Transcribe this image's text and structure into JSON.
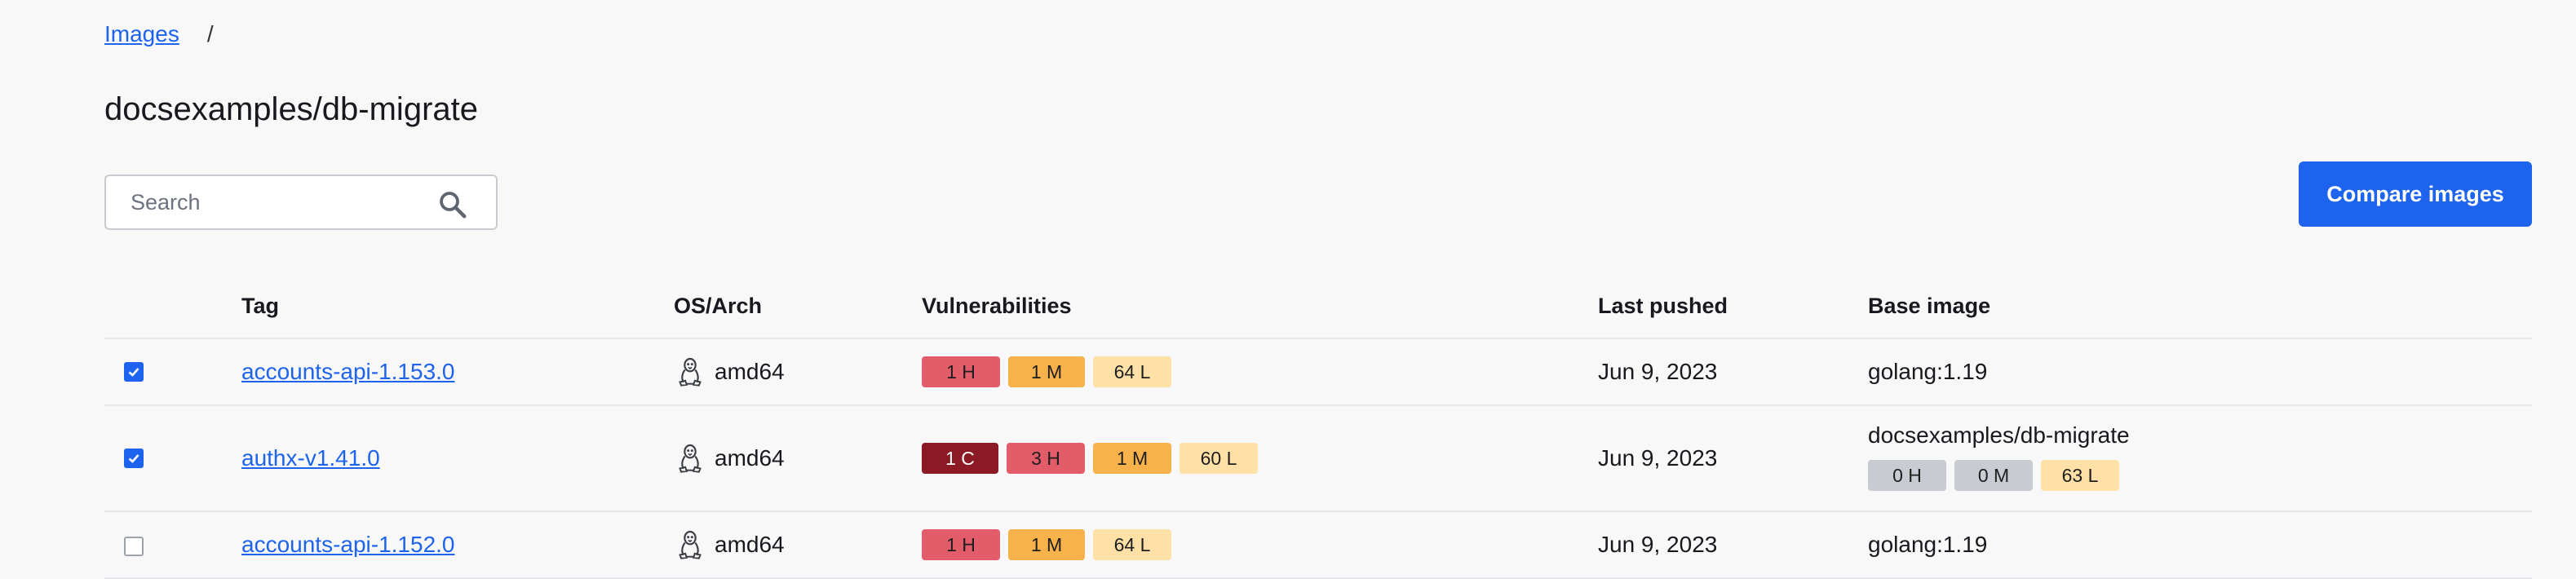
{
  "breadcrumb": {
    "images_link": "Images",
    "separator": "/"
  },
  "page_title": "docsexamples/db-migrate",
  "search": {
    "placeholder": "Search",
    "icon": "search-icon"
  },
  "compare_button": "Compare images",
  "table": {
    "headers": {
      "tag": "Tag",
      "os_arch": "OS/Arch",
      "vulnerabilities": "Vulnerabilities",
      "last_pushed": "Last pushed",
      "base_image": "Base image"
    },
    "rows": [
      {
        "checked": true,
        "tag": "accounts-api-1.153.0",
        "os_icon": "linux-icon",
        "arch": "amd64",
        "vulns": {
          "high": "1 H",
          "medium": "1 M",
          "low": "64 L"
        },
        "last_pushed": "Jun 9, 2023",
        "base_image": "golang:1.19"
      },
      {
        "checked": true,
        "tag": "authx-v1.41.0",
        "os_icon": "linux-icon",
        "arch": "amd64",
        "vulns": {
          "critical": "1 C",
          "high": "3 H",
          "medium": "1 M",
          "low": "60 L"
        },
        "last_pushed": "Jun 9, 2023",
        "base_image": "docsexamples/db-migrate",
        "base_vulns": {
          "high": "0 H",
          "medium": "0 M",
          "low": "63 L"
        }
      },
      {
        "checked": false,
        "tag": "accounts-api-1.152.0",
        "os_icon": "linux-icon",
        "arch": "amd64",
        "vulns": {
          "high": "1 H",
          "medium": "1 M",
          "low": "64 L"
        },
        "last_pushed": "Jun 9, 2023",
        "base_image": "golang:1.19"
      }
    ]
  },
  "colors": {
    "accent": "#1d63ed",
    "critical": "#8b1a24",
    "high": "#e25c69",
    "medium": "#f8b24c",
    "low": "#ffe0a6",
    "neutral": "#c8ccd2"
  }
}
